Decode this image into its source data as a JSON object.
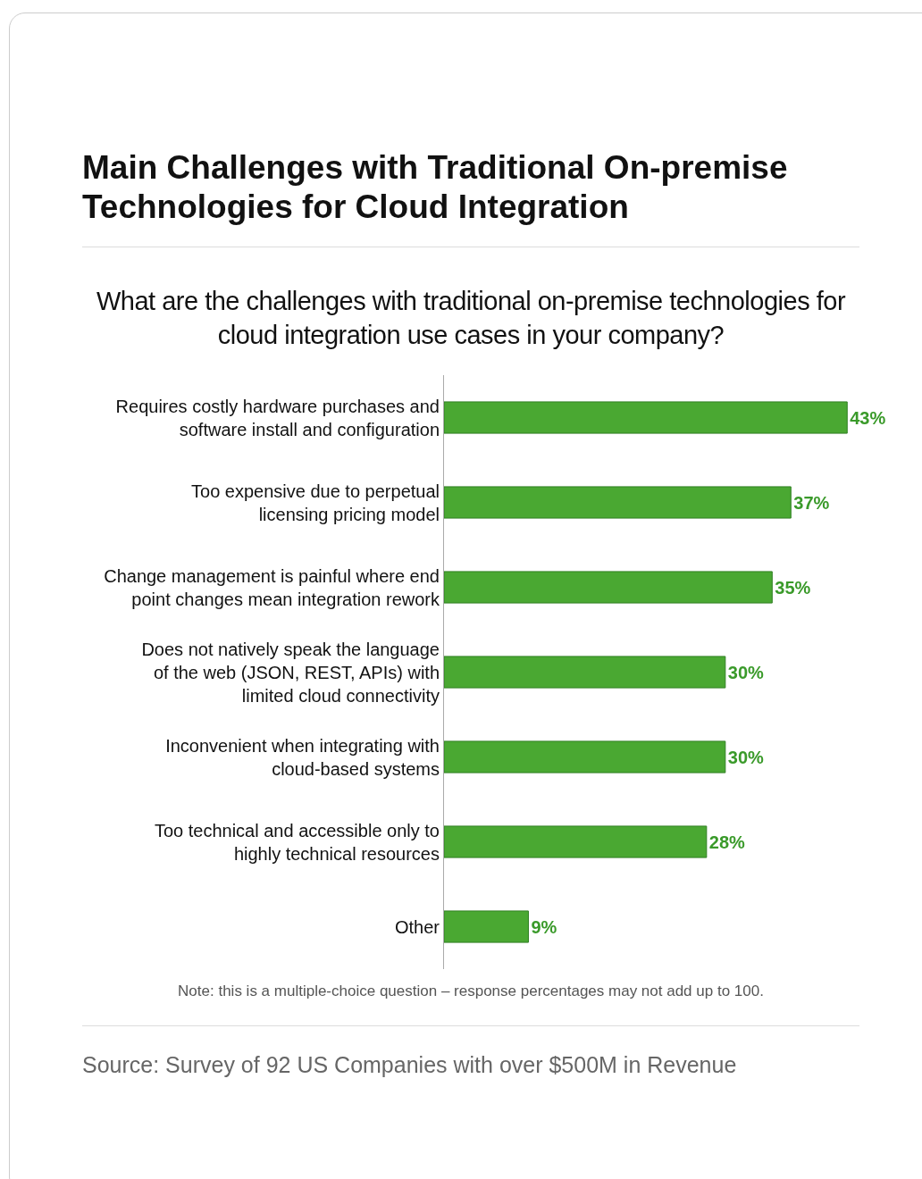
{
  "chart_data": {
    "type": "bar",
    "orientation": "horizontal",
    "title": "Main Challenges with Traditional On-premise Technologies for Cloud Integration",
    "subtitle": "What are the challenges with traditional on-premise technologies for cloud integration use cases in your company?",
    "categories": [
      "Requires costly hardware purchases and software install and configuration",
      "Too expensive due to perpetual licensing pricing model",
      "Change management is painful where end point changes mean integration rework",
      "Does not natively speak the language of the web (JSON, REST, APIs) with limited cloud connectivity",
      "Inconvenient when integrating with cloud-based systems",
      "Too technical and accessible only to highly technical resources",
      "Other"
    ],
    "values": [
      43,
      37,
      35,
      30,
      30,
      28,
      9
    ],
    "value_labels": [
      "43%",
      "37%",
      "35%",
      "30%",
      "30%",
      "28%",
      "9%"
    ],
    "color": "#4aa832",
    "tick_labels": "y",
    "grid": false,
    "annotations": [
      "Note: this is a multiple-choice question – response percentages may not add up to 100.",
      "Source: Survey of 92 US Companies with over $500M in Revenue"
    ]
  }
}
